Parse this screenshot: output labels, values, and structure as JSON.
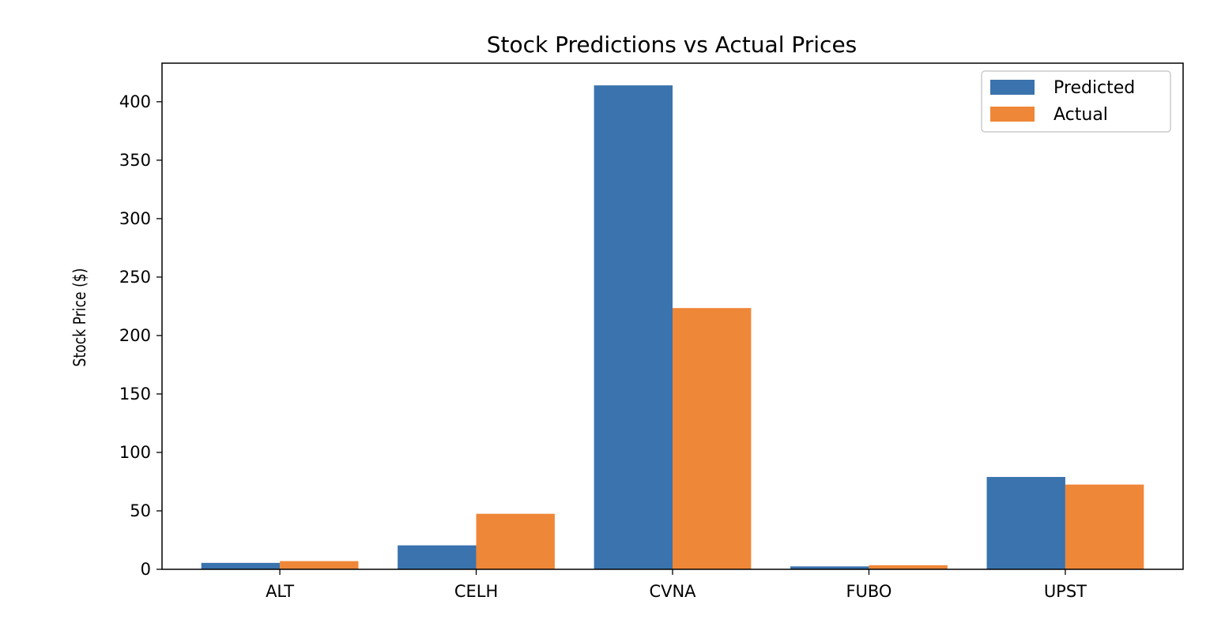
{
  "chart_data": {
    "type": "bar",
    "title": "Stock Predictions vs Actual Prices",
    "xlabel": "",
    "ylabel": "Stock Price ($)",
    "categories": [
      "ALT",
      "CELH",
      "CVNA",
      "FUBO",
      "UPST"
    ],
    "series": [
      {
        "name": "Predicted",
        "color": "#3a73ad",
        "values": [
          5.5,
          20.5,
          414,
          2.5,
          79
        ]
      },
      {
        "name": "Actual",
        "color": "#ef8738",
        "values": [
          7,
          47.5,
          223.5,
          3.5,
          72.5
        ]
      }
    ],
    "ylim": [
      0,
      433
    ],
    "yticks": [
      0,
      50,
      100,
      150,
      200,
      250,
      300,
      350,
      400
    ],
    "grid": false,
    "legend": "top-right"
  }
}
